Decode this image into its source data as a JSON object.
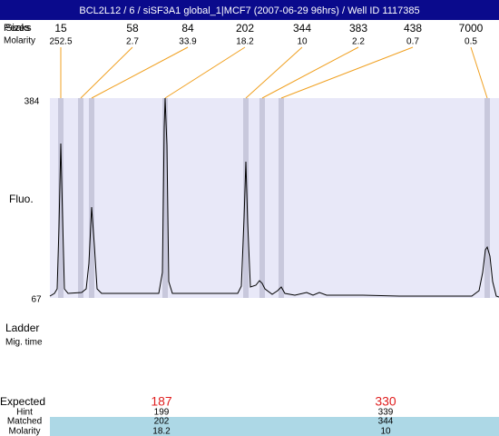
{
  "header": {
    "title": "BCL2L12 / 6 / siSF3A1 global_1|MCF7 (2007-06-29 96hrs) / Well ID 1117385"
  },
  "peaks": {
    "row_labels": [
      "Peaks",
      "Sizes",
      "Molarity"
    ],
    "sizes": [
      15,
      58,
      84,
      202,
      344,
      383,
      438,
      7000
    ],
    "molarity": [
      252.5,
      2.7,
      33.9,
      18.2,
      10,
      2.2,
      0.7,
      0.5
    ]
  },
  "axis": {
    "y_label": "Fluo.",
    "y_top": "384",
    "y_bottom": "67"
  },
  "ladder": {
    "label": "Ladder",
    "sub_label": "Mig. time"
  },
  "table": {
    "row_labels": [
      "Expected",
      "Hint",
      "Matched",
      "Molarity"
    ],
    "rows": [
      [
        187,
        330
      ],
      [
        199,
        339
      ],
      [
        202,
        344
      ],
      [
        18.2,
        10
      ]
    ]
  }
}
